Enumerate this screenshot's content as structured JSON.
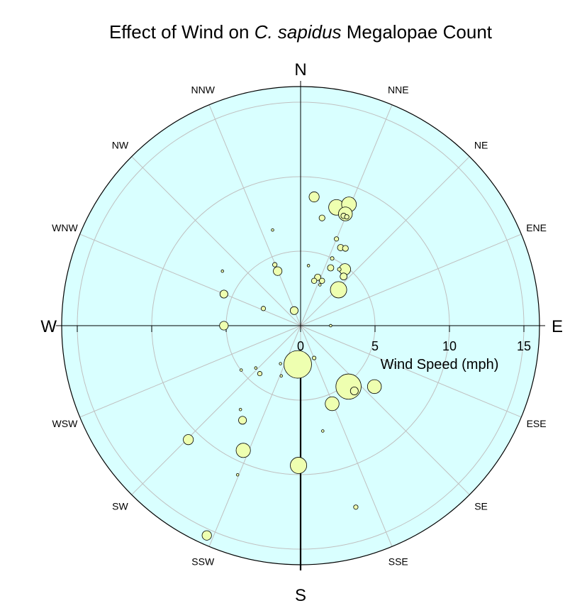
{
  "chart_data": {
    "type": "scatter",
    "subtype": "polar-bubble",
    "title": {
      "prefix": "Effect of Wind on ",
      "italic": "C. sapidus",
      "suffix": " Megalopae Count"
    },
    "radial_axis_label": "Wind Speed (mph)",
    "radial_ticks": [
      0,
      5,
      10,
      15
    ],
    "radial_range": [
      0,
      15
    ],
    "grid_rings": [
      5,
      10,
      15
    ],
    "grid": true,
    "cardinal_labels": [
      "N",
      "E",
      "S",
      "W"
    ],
    "direction_labels": [
      "NNE",
      "NE",
      "ENE",
      "ESE",
      "SE",
      "SSE",
      "SSW",
      "SW",
      "WSW",
      "WNW",
      "NW",
      "NNW"
    ],
    "colors": {
      "plot_background": "#d9ffff",
      "grid": "#c0c0c0",
      "bubble_fill": "#eeffb0",
      "bubble_stroke": "#000000"
    },
    "points_xy_mph": [
      {
        "x": 0.91,
        "y": 8.64,
        "count": 35
      },
      {
        "x": 2.41,
        "y": 7.94,
        "count": 90
      },
      {
        "x": 3.25,
        "y": 8.14,
        "count": 80
      },
      {
        "x": 3.01,
        "y": 7.5,
        "count": 70
      },
      {
        "x": 1.44,
        "y": 7.23,
        "count": 10
      },
      {
        "x": 2.89,
        "y": 7.37,
        "count": 8
      },
      {
        "x": 3.1,
        "y": 7.3,
        "count": 5
      },
      {
        "x": 2.41,
        "y": 5.82,
        "count": 5
      },
      {
        "x": 2.69,
        "y": 5.24,
        "count": 12
      },
      {
        "x": 3.01,
        "y": 5.19,
        "count": 10
      },
      {
        "x": 2.12,
        "y": 4.51,
        "count": 3
      },
      {
        "x": 0.53,
        "y": 4.03,
        "count": 1
      },
      {
        "x": 2.02,
        "y": 3.88,
        "count": 12
      },
      {
        "x": 2.6,
        "y": 3.78,
        "count": 3
      },
      {
        "x": 2.98,
        "y": 3.78,
        "count": 45
      },
      {
        "x": 2.89,
        "y": 3.3,
        "count": 15
      },
      {
        "x": 1.15,
        "y": 3.25,
        "count": 12
      },
      {
        "x": 0.91,
        "y": 3.01,
        "count": 8
      },
      {
        "x": 1.44,
        "y": 3.01,
        "count": 8
      },
      {
        "x": 1.3,
        "y": 2.74,
        "count": 1
      },
      {
        "x": 2.55,
        "y": 2.41,
        "count": 100
      },
      {
        "x": -1.88,
        "y": 6.42,
        "count": 1
      },
      {
        "x": -1.73,
        "y": 4.09,
        "count": 5
      },
      {
        "x": -1.54,
        "y": 3.66,
        "count": 25
      },
      {
        "x": -5.25,
        "y": 3.66,
        "count": 1
      },
      {
        "x": -5.15,
        "y": 2.12,
        "count": 20
      },
      {
        "x": -2.5,
        "y": 1.15,
        "count": 5
      },
      {
        "x": -0.43,
        "y": 1.01,
        "count": 20
      },
      {
        "x": 2.02,
        "y": 0.0,
        "count": 1
      },
      {
        "x": -5.15,
        "y": 0.0,
        "count": 25
      },
      {
        "x": 0.91,
        "y": -2.17,
        "count": 3
      },
      {
        "x": -1.35,
        "y": -2.55,
        "count": 1
      },
      {
        "x": -0.19,
        "y": -2.6,
        "count": 300
      },
      {
        "x": -3.01,
        "y": -2.84,
        "count": 1
      },
      {
        "x": -2.74,
        "y": -3.22,
        "count": 5
      },
      {
        "x": -3.99,
        "y": -2.98,
        "count": 1
      },
      {
        "x": -1.3,
        "y": -3.37,
        "count": 1
      },
      {
        "x": 3.22,
        "y": -4.09,
        "count": 250
      },
      {
        "x": 3.61,
        "y": -4.38,
        "count": 20
      },
      {
        "x": 4.96,
        "y": -4.09,
        "count": 70
      },
      {
        "x": 2.12,
        "y": -5.24,
        "count": 70
      },
      {
        "x": -4.04,
        "y": -5.63,
        "count": 1
      },
      {
        "x": -3.9,
        "y": -6.35,
        "count": 20
      },
      {
        "x": 1.49,
        "y": -7.07,
        "count": 1
      },
      {
        "x": -7.54,
        "y": -7.65,
        "count": 35
      },
      {
        "x": -3.85,
        "y": -8.37,
        "count": 75
      },
      {
        "x": -0.14,
        "y": -9.38,
        "count": 100
      },
      {
        "x": -4.23,
        "y": -10.01,
        "count": 1
      },
      {
        "x": 3.71,
        "y": -12.18,
        "count": 5
      },
      {
        "x": -6.3,
        "y": -14.08,
        "count": 30
      }
    ],
    "bubble_size_scale": "area proportional to count"
  }
}
